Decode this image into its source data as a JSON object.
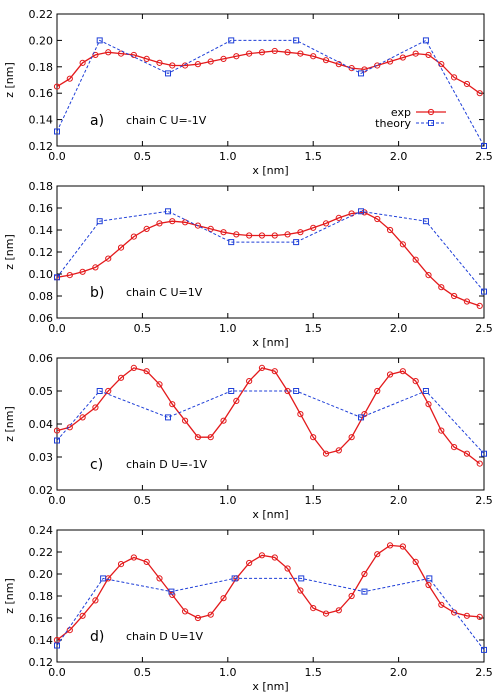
{
  "legend": {
    "exp_label": "exp",
    "theory_label": "theory"
  },
  "colors": {
    "exp": "#e31a1c",
    "theory": "#1f3fd8"
  },
  "chart_data": [
    {
      "type": "line",
      "panel_label": "a)",
      "annotation": "chain C   U=-1V",
      "xlabel": "x [nm]",
      "ylabel": "z [nm]",
      "xlim": [
        0,
        2.5
      ],
      "ylim": [
        0.12,
        0.22
      ],
      "x_ticks": [
        "0.0",
        "0.5",
        "1.0",
        "1.5",
        "2.0",
        "2.5"
      ],
      "y_ticks": [
        "0.12",
        "0.14",
        "0.16",
        "0.18",
        "0.20",
        "0.22"
      ],
      "legend_position": "bottom-right",
      "series": [
        {
          "name": "exp",
          "marker": "circle",
          "line": "solid",
          "x": [
            0.0,
            0.075,
            0.15,
            0.225,
            0.3,
            0.375,
            0.45,
            0.525,
            0.6,
            0.675,
            0.75,
            0.825,
            0.9,
            0.975,
            1.05,
            1.125,
            1.2,
            1.275,
            1.35,
            1.425,
            1.5,
            1.575,
            1.65,
            1.725,
            1.8,
            1.875,
            1.95,
            2.025,
            2.1,
            2.175,
            2.25,
            2.325,
            2.4,
            2.475
          ],
          "y": [
            0.165,
            0.171,
            0.183,
            0.189,
            0.191,
            0.19,
            0.189,
            0.186,
            0.183,
            0.181,
            0.181,
            0.182,
            0.184,
            0.186,
            0.188,
            0.19,
            0.191,
            0.192,
            0.191,
            0.19,
            0.188,
            0.185,
            0.182,
            0.179,
            0.178,
            0.181,
            0.184,
            0.187,
            0.19,
            0.189,
            0.182,
            0.172,
            0.167,
            0.16
          ]
        },
        {
          "name": "theory",
          "marker": "square",
          "line": "dashed",
          "x": [
            0.0,
            0.25,
            0.65,
            1.02,
            1.4,
            1.78,
            2.16,
            2.5
          ],
          "y": [
            0.131,
            0.2,
            0.175,
            0.2,
            0.2,
            0.175,
            0.2,
            0.12
          ]
        }
      ]
    },
    {
      "type": "line",
      "panel_label": "b)",
      "annotation": "chain C   U=1V",
      "xlabel": "x [nm]",
      "ylabel": "z [nm]",
      "xlim": [
        0,
        2.5
      ],
      "ylim": [
        0.06,
        0.18
      ],
      "x_ticks": [
        "0.0",
        "0.5",
        "1.0",
        "1.5",
        "2.0",
        "2.5"
      ],
      "y_ticks": [
        "0.06",
        "0.08",
        "0.10",
        "0.12",
        "0.14",
        "0.16",
        "0.18"
      ],
      "series": [
        {
          "name": "exp",
          "marker": "circle",
          "line": "solid",
          "x": [
            0.0,
            0.075,
            0.15,
            0.225,
            0.3,
            0.375,
            0.45,
            0.525,
            0.6,
            0.675,
            0.75,
            0.825,
            0.9,
            0.975,
            1.05,
            1.125,
            1.2,
            1.275,
            1.35,
            1.425,
            1.5,
            1.575,
            1.65,
            1.725,
            1.8,
            1.875,
            1.95,
            2.025,
            2.1,
            2.175,
            2.25,
            2.325,
            2.4,
            2.475
          ],
          "y": [
            0.097,
            0.099,
            0.102,
            0.106,
            0.114,
            0.124,
            0.134,
            0.141,
            0.146,
            0.148,
            0.147,
            0.144,
            0.141,
            0.138,
            0.136,
            0.135,
            0.135,
            0.135,
            0.136,
            0.138,
            0.142,
            0.146,
            0.151,
            0.155,
            0.156,
            0.15,
            0.14,
            0.127,
            0.113,
            0.099,
            0.088,
            0.08,
            0.075,
            0.071
          ]
        },
        {
          "name": "theory",
          "marker": "square",
          "line": "dashed",
          "x": [
            0.0,
            0.25,
            0.65,
            1.02,
            1.4,
            1.78,
            2.16,
            2.5
          ],
          "y": [
            0.097,
            0.148,
            0.157,
            0.129,
            0.129,
            0.157,
            0.148,
            0.084
          ]
        }
      ]
    },
    {
      "type": "line",
      "panel_label": "c)",
      "annotation": "chain D   U=-1V",
      "xlabel": "x [nm]",
      "ylabel": "z [nm]",
      "xlim": [
        0,
        2.5
      ],
      "ylim": [
        0.02,
        0.06
      ],
      "x_ticks": [
        "0.0",
        "0.5",
        "1.0",
        "1.5",
        "2.0",
        "2.5"
      ],
      "y_ticks": [
        "0.02",
        "0.03",
        "0.04",
        "0.05",
        "0.06"
      ],
      "series": [
        {
          "name": "exp",
          "marker": "circle",
          "line": "solid",
          "x": [
            0.0,
            0.075,
            0.15,
            0.225,
            0.3,
            0.375,
            0.45,
            0.525,
            0.6,
            0.675,
            0.75,
            0.825,
            0.9,
            0.975,
            1.05,
            1.125,
            1.2,
            1.275,
            1.35,
            1.425,
            1.5,
            1.575,
            1.65,
            1.725,
            1.8,
            1.875,
            1.95,
            2.025,
            2.1,
            2.175,
            2.25,
            2.325,
            2.4,
            2.475
          ],
          "y": [
            0.038,
            0.039,
            0.042,
            0.045,
            0.05,
            0.054,
            0.057,
            0.056,
            0.052,
            0.046,
            0.041,
            0.036,
            0.036,
            0.041,
            0.047,
            0.053,
            0.057,
            0.056,
            0.05,
            0.043,
            0.036,
            0.031,
            0.032,
            0.036,
            0.043,
            0.05,
            0.055,
            0.056,
            0.053,
            0.046,
            0.038,
            0.033,
            0.031,
            0.028
          ]
        },
        {
          "name": "theory",
          "marker": "square",
          "line": "dashed",
          "x": [
            0.0,
            0.25,
            0.65,
            1.02,
            1.4,
            1.78,
            2.16,
            2.5
          ],
          "y": [
            0.035,
            0.05,
            0.042,
            0.05,
            0.05,
            0.042,
            0.05,
            0.031
          ]
        }
      ]
    },
    {
      "type": "line",
      "panel_label": "d)",
      "annotation": "chain D   U=1V",
      "xlabel": "x [nm]",
      "ylabel": "z [nm]",
      "xlim": [
        0,
        2.5
      ],
      "ylim": [
        0.12,
        0.24
      ],
      "x_ticks": [
        "0.0",
        "0.5",
        "1.0",
        "1.5",
        "2.0",
        "2.5"
      ],
      "y_ticks": [
        "0.12",
        "0.14",
        "0.16",
        "0.18",
        "0.20",
        "0.22",
        "0.24"
      ],
      "series": [
        {
          "name": "exp",
          "marker": "circle",
          "line": "solid",
          "x": [
            0.0,
            0.075,
            0.15,
            0.225,
            0.3,
            0.375,
            0.45,
            0.525,
            0.6,
            0.675,
            0.75,
            0.825,
            0.9,
            0.975,
            1.05,
            1.125,
            1.2,
            1.275,
            1.35,
            1.425,
            1.5,
            1.575,
            1.65,
            1.725,
            1.8,
            1.875,
            1.95,
            2.025,
            2.1,
            2.175,
            2.25,
            2.325,
            2.4,
            2.475
          ],
          "y": [
            0.14,
            0.149,
            0.162,
            0.176,
            0.196,
            0.209,
            0.215,
            0.211,
            0.196,
            0.181,
            0.166,
            0.16,
            0.163,
            0.178,
            0.196,
            0.21,
            0.217,
            0.215,
            0.205,
            0.185,
            0.169,
            0.164,
            0.167,
            0.18,
            0.2,
            0.218,
            0.226,
            0.225,
            0.211,
            0.19,
            0.172,
            0.165,
            0.162,
            0.161
          ]
        },
        {
          "name": "theory",
          "marker": "square",
          "line": "dashed",
          "x": [
            0.0,
            0.27,
            0.67,
            1.04,
            1.43,
            1.8,
            2.18,
            2.5
          ],
          "y": [
            0.135,
            0.196,
            0.184,
            0.196,
            0.196,
            0.184,
            0.196,
            0.131
          ]
        }
      ]
    }
  ]
}
